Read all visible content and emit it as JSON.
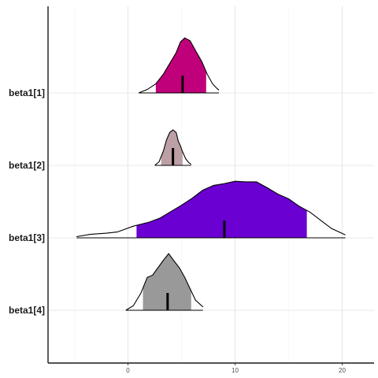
{
  "chart_data": {
    "type": "area",
    "xlim": [
      -7.5,
      23
    ],
    "x_ticks": [
      0,
      10,
      20
    ],
    "x_tick_labels": [
      "0",
      "10",
      "20"
    ],
    "grid": true,
    "series": [
      {
        "name": "beta1[1]",
        "color": "#C0007A",
        "range": [
          1.0,
          8.5
        ],
        "interval": [
          2.6,
          7.3
        ],
        "point": 5.1,
        "density": [
          [
            1.0,
            0.0
          ],
          [
            1.8,
            0.06
          ],
          [
            2.6,
            0.16
          ],
          [
            3.3,
            0.33
          ],
          [
            3.9,
            0.52
          ],
          [
            4.5,
            0.71
          ],
          [
            4.9,
            0.9
          ],
          [
            5.3,
            0.97
          ],
          [
            5.8,
            0.92
          ],
          [
            6.3,
            0.75
          ],
          [
            6.9,
            0.55
          ],
          [
            7.4,
            0.33
          ],
          [
            7.9,
            0.16
          ],
          [
            8.3,
            0.08
          ],
          [
            8.5,
            0.05
          ]
        ]
      },
      {
        "name": "beta1[2]",
        "color": "#BCA0A6",
        "range": [
          2.5,
          5.9
        ],
        "interval": [
          3.1,
          5.1
        ],
        "point": 4.2,
        "density": [
          [
            2.5,
            0.0
          ],
          [
            2.9,
            0.1
          ],
          [
            3.3,
            0.4
          ],
          [
            3.6,
            0.72
          ],
          [
            3.9,
            0.93
          ],
          [
            4.2,
            1.0
          ],
          [
            4.5,
            0.93
          ],
          [
            4.7,
            0.68
          ],
          [
            4.9,
            0.55
          ],
          [
            5.1,
            0.38
          ],
          [
            5.4,
            0.18
          ],
          [
            5.7,
            0.07
          ],
          [
            5.9,
            0.03
          ]
        ]
      },
      {
        "name": "beta1[3]",
        "color": "#6A00D2",
        "range": [
          -4.8,
          20.3
        ],
        "interval": [
          0.8,
          16.7
        ],
        "point": 9.0,
        "density": [
          [
            -4.8,
            0.02
          ],
          [
            -3.5,
            0.06
          ],
          [
            -2.0,
            0.08
          ],
          [
            -1.0,
            0.1
          ],
          [
            0.5,
            0.2
          ],
          [
            2.0,
            0.27
          ],
          [
            3.0,
            0.34
          ],
          [
            4.0,
            0.45
          ],
          [
            5.0,
            0.56
          ],
          [
            6.0,
            0.68
          ],
          [
            7.0,
            0.82
          ],
          [
            8.0,
            0.9
          ],
          [
            9.0,
            0.93
          ],
          [
            10.0,
            0.97
          ],
          [
            11.0,
            0.96
          ],
          [
            12.0,
            0.96
          ],
          [
            13.0,
            0.86
          ],
          [
            14.0,
            0.75
          ],
          [
            15.0,
            0.67
          ],
          [
            16.0,
            0.54
          ],
          [
            17.0,
            0.44
          ],
          [
            18.0,
            0.3
          ],
          [
            19.0,
            0.16
          ],
          [
            20.3,
            0.05
          ]
        ]
      },
      {
        "name": "beta1[4]",
        "color": "#999999",
        "range": [
          -0.2,
          7.0
        ],
        "interval": [
          1.4,
          5.9
        ],
        "point": 3.7,
        "density": [
          [
            -0.2,
            0.0
          ],
          [
            0.5,
            0.08
          ],
          [
            1.2,
            0.3
          ],
          [
            1.8,
            0.58
          ],
          [
            2.3,
            0.62
          ],
          [
            2.8,
            0.75
          ],
          [
            3.3,
            0.88
          ],
          [
            3.8,
            1.0
          ],
          [
            4.3,
            0.87
          ],
          [
            4.8,
            0.75
          ],
          [
            5.3,
            0.58
          ],
          [
            5.8,
            0.38
          ],
          [
            6.3,
            0.18
          ],
          [
            7.0,
            0.06
          ]
        ]
      }
    ]
  }
}
